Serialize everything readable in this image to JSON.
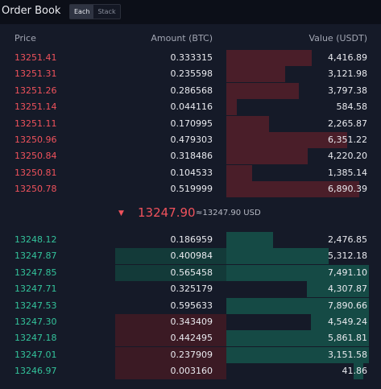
{
  "header": {
    "title": "Order Book",
    "toggle": [
      "Each",
      "Stack"
    ],
    "active_toggle": "Each"
  },
  "columns": {
    "price": "Price",
    "amount": "Amount (BTC)",
    "value": "Value (USDT)"
  },
  "colors": {
    "sell": "#f0525c",
    "buy": "#33c39b",
    "sell_bar": "#4a1e29",
    "buy_bar": "#154a45"
  },
  "sells": [
    {
      "price": "13251.41",
      "amount": "0.333315",
      "value": "4,416.89"
    },
    {
      "price": "13251.31",
      "amount": "0.235598",
      "value": "3,121.98"
    },
    {
      "price": "13251.26",
      "amount": "0.286568",
      "value": "3,797.38"
    },
    {
      "price": "13251.14",
      "amount": "0.044116",
      "value": "584.58"
    },
    {
      "price": "13251.11",
      "amount": "0.170995",
      "value": "2,265.87"
    },
    {
      "price": "13250.96",
      "amount": "0.479303",
      "value": "6,351.22"
    },
    {
      "price": "13250.84",
      "amount": "0.318486",
      "value": "4,220.20"
    },
    {
      "price": "13250.81",
      "amount": "0.104533",
      "value": "1,385.14"
    },
    {
      "price": "13250.78",
      "amount": "0.519999",
      "value": "6,890.39"
    }
  ],
  "mid": {
    "direction_icon": "triangle-down-icon",
    "last_price": "13247.90",
    "ref_price": "≈13247.90 USD"
  },
  "buys": [
    {
      "price": "13248.12",
      "amount": "0.186959",
      "value": "2,476.85",
      "depth_share": 0.0
    },
    {
      "price": "13247.87",
      "amount": "0.400984",
      "value": "5,312.18",
      "depth_share": 0.0
    },
    {
      "price": "13247.85",
      "amount": "0.565458",
      "value": "7,491.10",
      "depth_share": 0.0
    },
    {
      "price": "13247.71",
      "amount": "0.325179",
      "value": "4,307.87",
      "depth_share": 0.0
    },
    {
      "price": "13247.53",
      "amount": "0.595633",
      "value": "7,890.66",
      "depth_share": 0.0
    },
    {
      "price": "13247.30",
      "amount": "0.343409",
      "value": "4,549.24",
      "depth_share": 0.0
    },
    {
      "price": "13247.18",
      "amount": "0.442495",
      "value": "5,861.81",
      "depth_share": 0.0
    },
    {
      "price": "13247.01",
      "amount": "0.237909",
      "value": "3,151.58",
      "depth_share": 0.0
    },
    {
      "price": "13246.97",
      "amount": "0.003160",
      "value": "41.86",
      "depth_share": 0.0
    }
  ]
}
